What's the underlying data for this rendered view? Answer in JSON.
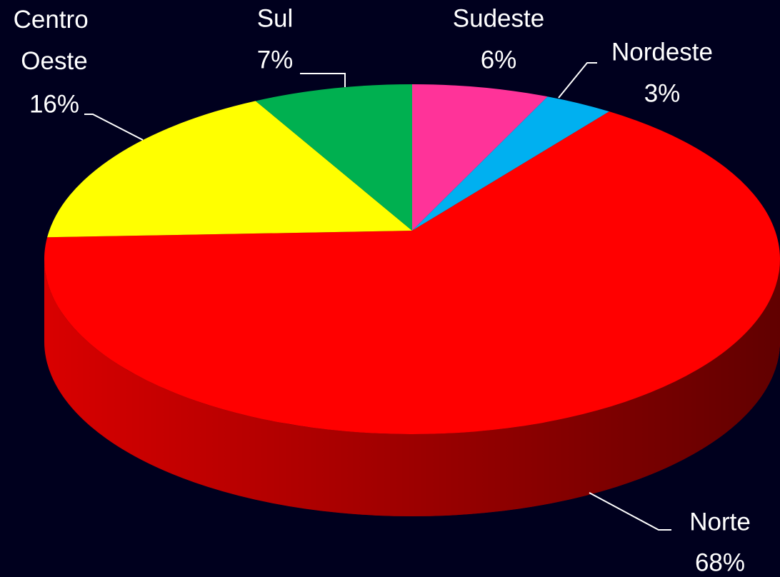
{
  "chart_data": {
    "type": "pie",
    "categories": [
      "Sudeste",
      "Nordeste",
      "Norte",
      "Centro Oeste",
      "Sul"
    ],
    "values": [
      6,
      3,
      68,
      16,
      7
    ],
    "value_labels": [
      "6%",
      "3%",
      "68%",
      "16%",
      "7%"
    ],
    "colors": [
      "#ff3399",
      "#00b0f0",
      "#ff0000",
      "#ffff00",
      "#00b050"
    ]
  }
}
